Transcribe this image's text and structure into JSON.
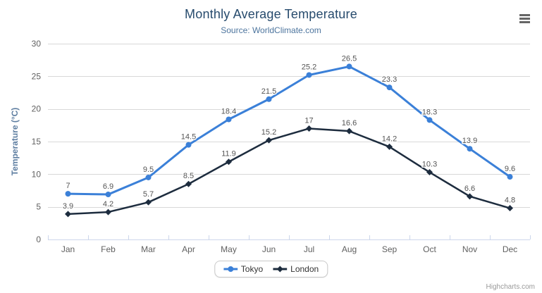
{
  "credits": "Highcharts.com",
  "colors": {
    "title": "#274b6d",
    "subtitle": "#4d759e",
    "axis_title": "#5d7da0",
    "axis_labels": "#606060",
    "data_labels": "#555555",
    "grid_line": "#d8d8d8",
    "axis_line": "#ccd6eb",
    "menu_icon": "#666666",
    "credits_text": "#999999"
  },
  "chart_data": {
    "type": "line",
    "title": "Monthly Average Temperature",
    "subtitle": "Source: WorldClimate.com",
    "xlabel": "",
    "ylabel": "Temperature (°C)",
    "categories": [
      "Jan",
      "Feb",
      "Mar",
      "Apr",
      "May",
      "Jun",
      "Jul",
      "Aug",
      "Sep",
      "Oct",
      "Nov",
      "Dec"
    ],
    "series": [
      {
        "name": "Tokyo",
        "color": "#3b80d8",
        "marker": "circle",
        "line_width": 3,
        "values": [
          7,
          6.9,
          9.5,
          14.5,
          18.4,
          21.5,
          25.2,
          26.5,
          23.3,
          18.3,
          13.9,
          9.6
        ]
      },
      {
        "name": "London",
        "color": "#1d2c3e",
        "marker": "diamond",
        "line_width": 2.5,
        "values": [
          3.9,
          4.2,
          5.7,
          8.5,
          11.9,
          15.2,
          17,
          16.6,
          14.2,
          10.3,
          6.6,
          4.8
        ]
      }
    ],
    "ylim": [
      0,
      30
    ],
    "ytick_interval": 5,
    "grid": true,
    "data_labels": true,
    "legend_position": "bottom"
  }
}
